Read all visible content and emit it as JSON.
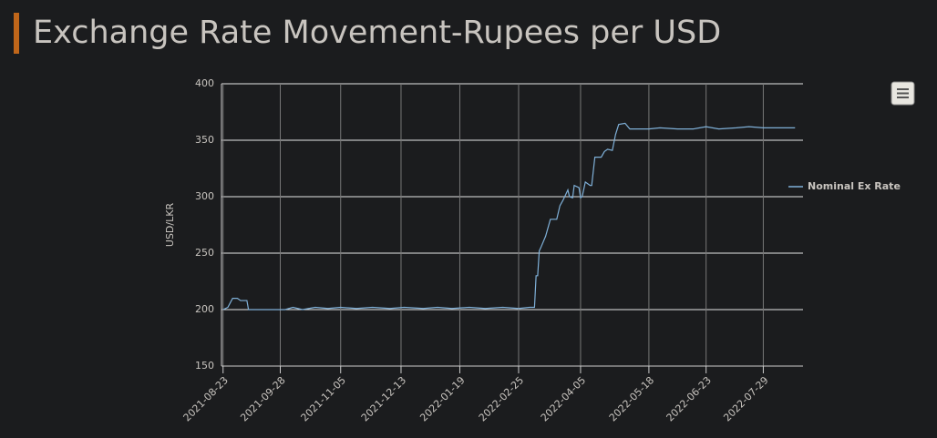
{
  "chart_data": {
    "type": "line",
    "title": "Exchange Rate Movement-Rupees per USD",
    "y_label": "USD/LKR",
    "x": [
      "2021-08-23",
      "2021-08-26",
      "2021-08-29",
      "2021-09-01",
      "2021-09-03",
      "2021-09-07",
      "2021-09-08",
      "2021-09-20",
      "2021-10-01",
      "2021-10-06",
      "2021-10-12",
      "2021-10-20",
      "2021-10-28",
      "2021-11-05",
      "2021-11-15",
      "2021-11-25",
      "2021-12-06",
      "2021-12-15",
      "2021-12-27",
      "2022-01-05",
      "2022-01-14",
      "2022-01-25",
      "2022-02-04",
      "2022-02-15",
      "2022-02-25",
      "2022-03-04",
      "2022-03-07",
      "2022-03-08",
      "2022-03-09",
      "2022-03-10",
      "2022-03-11",
      "2022-03-14",
      "2022-03-15",
      "2022-03-17",
      "2022-03-21",
      "2022-03-23",
      "2022-03-25",
      "2022-03-28",
      "2022-03-29",
      "2022-03-31",
      "2022-04-01",
      "2022-04-04",
      "2022-04-05",
      "2022-04-06",
      "2022-04-08",
      "2022-04-11",
      "2022-04-12",
      "2022-04-14",
      "2022-04-18",
      "2022-04-20",
      "2022-04-22",
      "2022-04-25",
      "2022-04-27",
      "2022-04-29",
      "2022-05-03",
      "2022-05-06",
      "2022-05-18",
      "2022-05-25",
      "2022-06-05",
      "2022-06-15",
      "2022-06-23",
      "2022-07-01",
      "2022-07-12",
      "2022-07-20",
      "2022-07-29",
      "2022-08-08",
      "2022-08-18"
    ],
    "series": [
      {
        "name": "Nominal Ex Rate",
        "color": "#7fb0d8",
        "values": [
          200,
          202,
          210,
          210,
          208,
          208,
          200,
          200,
          200,
          202,
          200,
          202,
          201,
          202,
          201,
          202,
          201,
          202,
          201,
          202,
          201,
          202,
          201,
          202,
          201,
          202,
          202,
          230,
          230,
          252,
          255,
          265,
          270,
          280,
          280,
          292,
          297,
          306,
          300,
          299,
          310,
          308,
          299,
          300,
          313,
          310,
          310,
          335,
          335,
          340,
          342,
          341,
          355,
          364,
          365,
          360,
          360,
          361,
          360,
          360,
          362,
          360,
          361,
          362,
          361,
          361,
          361
        ]
      }
    ],
    "xlim": [
      "2021-08-22",
      "2022-08-23"
    ],
    "xticks": [
      "2021-08-23",
      "2021-09-28",
      "2021-11-05",
      "2021-12-13",
      "2022-01-19",
      "2022-02-25",
      "2022-04-05",
      "2022-05-18",
      "2022-06-23",
      "2022-07-29"
    ],
    "ylim": [
      150,
      400
    ],
    "yticks": [
      150,
      200,
      250,
      300,
      350,
      400
    ],
    "grid": true,
    "legend": "right"
  }
}
